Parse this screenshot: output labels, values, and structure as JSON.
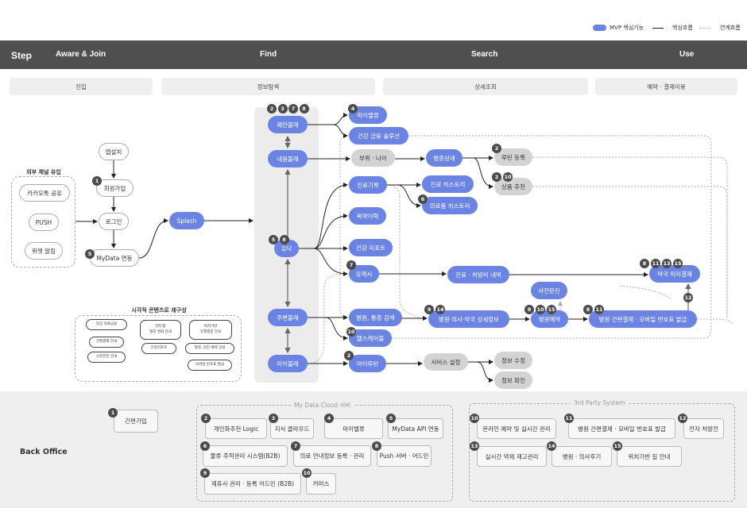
{
  "colors": {
    "mvp": "#6b84e3",
    "gray": "#d3d3d3",
    "badge": "#4b4b4b",
    "header": "#4f4f4f"
  },
  "legend": {
    "mvp": "MVP 핵심기능",
    "core": "핵심흐름",
    "link": "연계흐름"
  },
  "header": {
    "step": "Step",
    "stages": [
      "Aware & Join",
      "Find",
      "Search",
      "Use"
    ]
  },
  "subheaders": [
    "진입",
    "정보탐색",
    "상세조회",
    "예약 · 결제이용"
  ],
  "labels": {
    "external": "외부 채널 유입",
    "visual": "시각적 콘텐츠로 재구성",
    "backoffice": "Back Office",
    "mydata_cloud": "My Data Cloud 서버",
    "third_party": "3rd Party System"
  },
  "nodes": {
    "app_install": {
      "label": "앱설치"
    },
    "signup": {
      "label": "회원가입",
      "badges": [
        "1"
      ]
    },
    "login": {
      "label": "로그인"
    },
    "mydata": {
      "label": "MyData 연동",
      "badges": [
        "5"
      ]
    },
    "kakao": {
      "label": "카카오톡 공유"
    },
    "push": {
      "label": "PUSH"
    },
    "widget": {
      "label": "위젯 알림"
    },
    "splash": {
      "label": "Splash"
    },
    "suggest": {
      "label": "제안볼래",
      "badges": [
        "2",
        "3",
        "7",
        "8"
      ]
    },
    "body": {
      "label": "내몸볼래"
    },
    "yudak": {
      "label": "유닥",
      "badges": [
        "5",
        "8"
      ]
    },
    "nearby": {
      "label": "주변볼래"
    },
    "my": {
      "label": "마이볼래"
    },
    "myvalue": {
      "label": "마이밸류",
      "badges": [
        "4"
      ]
    },
    "solution": {
      "label": "건강 금융 솔루션"
    },
    "part": {
      "label": "부위 · 나이"
    },
    "disease": {
      "label": "병증상세"
    },
    "routine": {
      "label": "루틴 등록",
      "badges": [
        "2"
      ]
    },
    "product": {
      "label": "상품 추천",
      "badges": [
        "2",
        "10"
      ]
    },
    "record": {
      "label": "진료기록"
    },
    "rec_hist": {
      "label": "진료 히스토리"
    },
    "med_hist": {
      "label": "의료품 히스토리",
      "badges": [
        "6"
      ]
    },
    "dosage": {
      "label": "복약이력"
    },
    "report": {
      "label": "건강 리포트"
    },
    "ucash": {
      "label": "유케시",
      "badges": [
        "7"
      ]
    },
    "bill": {
      "label": "진료 · 처방비 내역"
    },
    "pharmacy": {
      "label": "약국 미리결제",
      "badges": [
        "8",
        "11",
        "13",
        "15"
      ]
    },
    "questionnaire": {
      "label": "사전문진"
    },
    "search": {
      "label": "병원, 통증 검색"
    },
    "detail": {
      "label": "병원·의사·약국 상세정보",
      "badges": [
        "9",
        "14"
      ]
    },
    "reserve": {
      "label": "병원예약",
      "badges": [
        "8",
        "10",
        "15"
      ]
    },
    "pay": {
      "label": "병원 간편결제 · 모바일 번호표 발급",
      "badges": [
        "8",
        "11"
      ]
    },
    "mall": {
      "label": "헬스케어몰",
      "badges": [
        "10"
      ]
    },
    "myroutine": {
      "label": "마이루틴",
      "badges": [
        "2"
      ]
    },
    "settings": {
      "label": "서비스 설정"
    },
    "edit": {
      "label": "정보 수정"
    },
    "confirm": {
      "label": "정보 확인"
    },
    "pay_to_pharmacy": {
      "badges": [
        "12"
      ]
    }
  },
  "visual_items": {
    "v1": {
      "label": "일상 의료금융"
    },
    "v2": {
      "label": "간편결제 안내"
    },
    "v3": {
      "label": "사전문진 안내"
    },
    "v4": {
      "label": "연도별\n병증 변화 안내"
    },
    "v5": {
      "label": "건강리포트"
    },
    "v6": {
      "label": "위치기반\n유행병증 안내"
    },
    "v7": {
      "label": "병원, 검진 예약 안내"
    },
    "v8": {
      "label": "모바일 번호표 발급"
    }
  },
  "backoffice": {
    "easy_signup": {
      "label": "간편가입",
      "badges": [
        "1"
      ]
    },
    "b2": {
      "label": "개인화추천 Logic",
      "badges": [
        "2"
      ]
    },
    "b3": {
      "label": "지식 클라우드",
      "badges": [
        "3"
      ]
    },
    "b4": {
      "label": "마이밸류",
      "badges": [
        "4"
      ]
    },
    "b5": {
      "label": "MyData API 연동",
      "badges": [
        "5"
      ]
    },
    "b6": {
      "label": "물류 추적관리 시스템(B2B)",
      "badges": [
        "6"
      ]
    },
    "b7": {
      "label": "의료 안내정보 등록 · 관리",
      "badges": [
        "7"
      ]
    },
    "b8": {
      "label": "Push 서버 · 어드민",
      "badges": [
        "8"
      ]
    },
    "b9": {
      "label": "제휴사 관리 · 등록 어드민 (B2B)",
      "badges": [
        "9"
      ]
    },
    "b10": {
      "label": "커머스",
      "badges": [
        "10"
      ]
    },
    "t10": {
      "label": "온라인 예약 및 실시간 관리",
      "badges": [
        "10"
      ]
    },
    "t11": {
      "label": "병원 간편결제 · 모바일 번호표 발급",
      "badges": [
        "11"
      ]
    },
    "t12": {
      "label": "전자 처방전",
      "badges": [
        "12"
      ]
    },
    "t13": {
      "label": "실시간 약제 재고관리",
      "badges": [
        "13"
      ]
    },
    "t14": {
      "label": "병원 · 의사후기",
      "badges": [
        "14"
      ]
    },
    "t15": {
      "label": "위치기반 길 안내",
      "badges": [
        "15"
      ]
    }
  }
}
